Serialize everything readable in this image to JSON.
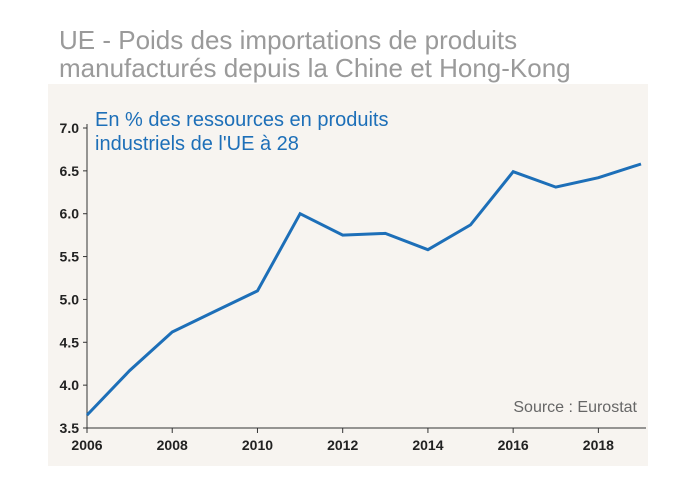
{
  "title": {
    "line1": "UE - Poids des importations de produits",
    "line2": "manufacturés depuis la Chine et Hong-Kong"
  },
  "subtitle": {
    "line1": "En % des ressources en produits",
    "line2": "industriels de l'UE à 28"
  },
  "source": "Source : Eurostat",
  "colors": {
    "line": "#1d6fb8",
    "panel": "#f7f4f0",
    "title": "#9a9a9a"
  },
  "chart_data": {
    "type": "line",
    "title": "UE - Poids des importations de produits manufacturés depuis la Chine et Hong-Kong",
    "subtitle": "En % des ressources en produits industriels de l'UE à 28",
    "xlabel": "",
    "ylabel": "",
    "x": [
      2006,
      2007,
      2008,
      2009,
      2010,
      2011,
      2012,
      2013,
      2014,
      2015,
      2016,
      2017,
      2018,
      2019
    ],
    "series": [
      {
        "values": [
          3.65,
          4.17,
          4.62,
          4.86,
          5.1,
          6.0,
          5.75,
          5.77,
          5.58,
          5.87,
          6.49,
          6.31,
          6.42,
          6.58
        ]
      }
    ],
    "xlim": [
      2006,
      2019
    ],
    "ylim": [
      3.5,
      7.0
    ],
    "xticks": [
      "2006",
      "2008",
      "2010",
      "2012",
      "2014",
      "2016",
      "2018"
    ],
    "yticks": [
      "3.5",
      "4.0",
      "4.5",
      "5.0",
      "5.5",
      "6.0",
      "6.5",
      "7.0"
    ],
    "grid": false,
    "legend": "none"
  }
}
